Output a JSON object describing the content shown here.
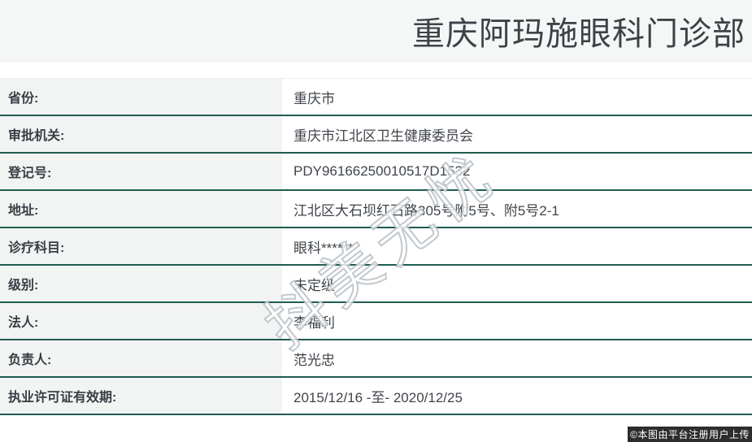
{
  "header": {
    "title": "重庆阿玛施眼科门诊部"
  },
  "table": {
    "rows": [
      {
        "label": "省份:",
        "value": "重庆市"
      },
      {
        "label": "审批机关:",
        "value": "重庆市江北区卫生健康委员会"
      },
      {
        "label": "登记号:",
        "value": "PDY96166250010517D1532"
      },
      {
        "label": "地址:",
        "value": "江北区大石坝红石路305号附5号、附5号2-1"
      },
      {
        "label": "诊疗科目:",
        "value": "眼科******"
      },
      {
        "label": "级别:",
        "value": "未定级"
      },
      {
        "label": "法人:",
        "value": "李福利"
      },
      {
        "label": "负责人:",
        "value": "范光忠"
      },
      {
        "label": "执业许可证有效期:",
        "value": "2015/12/16 -至- 2020/12/25"
      }
    ]
  },
  "watermark": {
    "text": "抖美无忧"
  },
  "footer": {
    "attribution": "©本图由平台注册用户上传"
  },
  "colors": {
    "header_background": "#f5f6f6",
    "label_background": "#f2f3f3",
    "row_border_teal": "#1f5c50",
    "title_text": "#3d4247",
    "body_text": "#3f444a",
    "badge_background": "#2d2d2d",
    "badge_text": "#ffffff"
  }
}
